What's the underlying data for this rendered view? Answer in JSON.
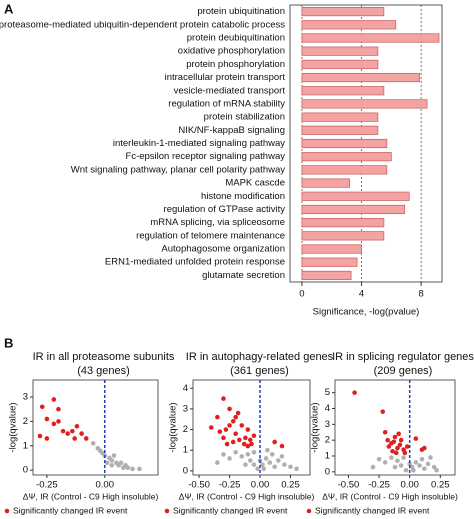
{
  "panel_labels": {
    "a": "A",
    "b": "B"
  },
  "chart_data": [
    {
      "type": "bar",
      "x_label": "Significance, -log(pvalue)",
      "categories": [
        "protein ubiquitination",
        "proteasome-mediated ubiquitin-dependent protein catabolic process",
        "protein deubiquitination",
        "oxidative phosphorylation",
        "protein phosphorylation",
        "intracellular protein transport",
        "vesicle-mediated transport",
        "regulation of mRNA stability",
        "protein stabilization",
        "NIK/NF-kappaB signaling",
        "interleukin-1-mediated signaling pathway",
        "Fc-epsilon receptor signaling pathway",
        "Wnt signaling pathway, planar cell polarity pathway",
        "MAPK cascde",
        "histone modification",
        "regulation of GTPase activity",
        "mRNA splicing, via spliceosome",
        "regulation of telomere maintenance",
        "Autophagosome organization",
        "ERN1-mediated unfolded protein response",
        "glutamate secretion"
      ],
      "values": [
        5.5,
        6.3,
        9.2,
        5.1,
        5.1,
        7.9,
        5.5,
        8.4,
        5.1,
        5.1,
        5.7,
        6.0,
        5.7,
        3.2,
        7.2,
        6.9,
        5.5,
        5.5,
        4.0,
        3.7,
        3.3
      ],
      "color": "#f4a3a3",
      "xlim": [
        -0.8,
        9.4
      ],
      "xticks": [
        0,
        4,
        8
      ],
      "grid": true
    },
    {
      "type": "scatter",
      "title": "IR in all proteasome subunits",
      "subtitle": "(43 genes)",
      "x_label": "ΔΨ, IR (Control - C9 High insoluble)",
      "y_label": "-log(qvalue)",
      "xlim": [
        -0.31,
        0.23
      ],
      "ylim": [
        -0.2,
        3.7
      ],
      "xticks": [
        -0.25,
        {
          "value": 0,
          "label": "0.00"
        }
      ],
      "yticks": [
        0,
        1,
        2,
        3
      ],
      "vline": 0,
      "series": [
        {
          "color": "#b0b0b0",
          "x": [
            -0.05,
            -0.03,
            -0.02,
            0,
            0.02,
            0.03,
            0.05,
            0.06,
            0.08,
            0.1,
            0.04,
            -0.01,
            0.07,
            0.12,
            0.15,
            0.01,
            0.09,
            0.03
          ],
          "values": [
            1.1,
            0.9,
            0.8,
            0.6,
            0.5,
            0.4,
            0.3,
            0.2,
            0.1,
            0.1,
            0.6,
            0.7,
            0.3,
            0.05,
            0.05,
            0.3,
            0.2,
            0.2
          ]
        },
        {
          "name": "Significantly changed IR event",
          "color": "#e02020",
          "x": [
            -0.27,
            -0.25,
            -0.22,
            -0.2,
            -0.2,
            -0.18,
            -0.16,
            -0.14,
            -0.25,
            -0.28,
            -0.12,
            -0.1,
            -0.08,
            -0.13,
            -0.22
          ],
          "values": [
            2.6,
            2.1,
            2.9,
            2.5,
            2.0,
            1.6,
            1.5,
            1.6,
            1.3,
            1.4,
            1.8,
            1.5,
            1.3,
            1.3,
            1.9
          ]
        }
      ]
    },
    {
      "type": "scatter",
      "title": "IR in autophagy-related genes",
      "subtitle": "(361 genes)",
      "x_label": "ΔΨ, IR (Control - C9 High insoluble)",
      "y_label": "-log(qvalue)",
      "xlim": [
        -0.55,
        0.41
      ],
      "ylim": [
        -0.2,
        4.4
      ],
      "xticks": [
        {
          "value": -0.5,
          "label": "-0.50"
        },
        -0.25,
        {
          "value": 0,
          "label": "0.00"
        },
        0.25
      ],
      "yticks": [
        0,
        1,
        2,
        3,
        4
      ],
      "vline": 0,
      "series": [
        {
          "color": "#b0b0b0",
          "x": [
            -0.3,
            -0.25,
            -0.2,
            -0.15,
            -0.1,
            -0.05,
            0,
            0.02,
            0.05,
            0.08,
            0.1,
            0.15,
            0.2,
            0.25,
            0.3,
            -0.05,
            -0.02,
            0.03,
            -0.12,
            0.12,
            -0.35,
            0.06,
            -0.08,
            0.18
          ],
          "values": [
            0.8,
            0.6,
            0.9,
            0.7,
            0.8,
            0.9,
            0.5,
            0.3,
            0.6,
            0.4,
            0.8,
            0.5,
            0.3,
            0.2,
            0.1,
            0.3,
            0.1,
            0.1,
            0.3,
            0.2,
            0.4,
            1.0,
            0.5,
            0.7
          ]
        },
        {
          "name": "Significantly changed IR event",
          "color": "#e02020",
          "x": [
            -0.4,
            -0.35,
            -0.3,
            -0.28,
            -0.25,
            -0.22,
            -0.2,
            -0.18,
            -0.15,
            -0.12,
            -0.1,
            -0.08,
            -0.05,
            -0.3,
            -0.22,
            -0.17,
            -0.13,
            -0.25,
            -0.2,
            -0.07,
            -0.33,
            -0.1,
            -0.27,
            0.12,
            0.18
          ],
          "values": [
            2.1,
            2.6,
            3.5,
            2.0,
            3.0,
            2.4,
            1.8,
            2.8,
            2.2,
            1.6,
            2.0,
            1.5,
            1.7,
            1.6,
            1.4,
            1.5,
            1.3,
            2.2,
            2.6,
            1.3,
            1.9,
            1.2,
            1.3,
            1.4,
            1.2
          ]
        }
      ]
    },
    {
      "type": "scatter",
      "title": "IR in splicing regulator genes",
      "subtitle": "(209 genes)",
      "x_label": "ΔΨ, IR (Control - C9 High insoluble)",
      "y_label": "-log(qvalue)",
      "xlim": [
        -0.61,
        0.37
      ],
      "ylim": [
        -0.2,
        5.8
      ],
      "xticks": [
        {
          "value": -0.5,
          "label": "-0.50"
        },
        -0.25,
        {
          "value": 0,
          "label": "0.00"
        },
        0.25
      ],
      "yticks": [
        0,
        1,
        2,
        3,
        4,
        5
      ],
      "vline": 0,
      "series": [
        {
          "color": "#b0b0b0",
          "x": [
            -0.25,
            -0.2,
            -0.15,
            -0.1,
            -0.05,
            0,
            0.02,
            0.05,
            0.08,
            0.1,
            0.15,
            0.2,
            -0.03,
            0.03,
            -0.12,
            0.12,
            -0.3,
            -0.07,
            0.17,
            0.22
          ],
          "values": [
            0.8,
            0.6,
            0.9,
            0.7,
            0.9,
            0.5,
            0.3,
            0.6,
            0.4,
            0.8,
            0.5,
            0.3,
            0.1,
            0.1,
            0.3,
            0.2,
            0.3,
            0.4,
            0.9,
            0.1
          ]
        },
        {
          "name": "Significantly changed IR event",
          "color": "#e02020",
          "x": [
            -0.45,
            -0.22,
            -0.2,
            -0.18,
            -0.15,
            -0.12,
            -0.1,
            -0.08,
            -0.05,
            -0.02,
            -0.14,
            -0.17,
            -0.07,
            0.1,
            0.05,
            0.12,
            -0.11,
            -0.04,
            -0.13,
            -0.09
          ],
          "values": [
            5.0,
            3.8,
            2.5,
            2.0,
            1.8,
            2.2,
            1.5,
            1.7,
            1.4,
            1.6,
            1.3,
            1.6,
            2.0,
            1.4,
            2.1,
            1.5,
            1.2,
            1.2,
            1.9,
            2.4
          ]
        }
      ]
    }
  ]
}
